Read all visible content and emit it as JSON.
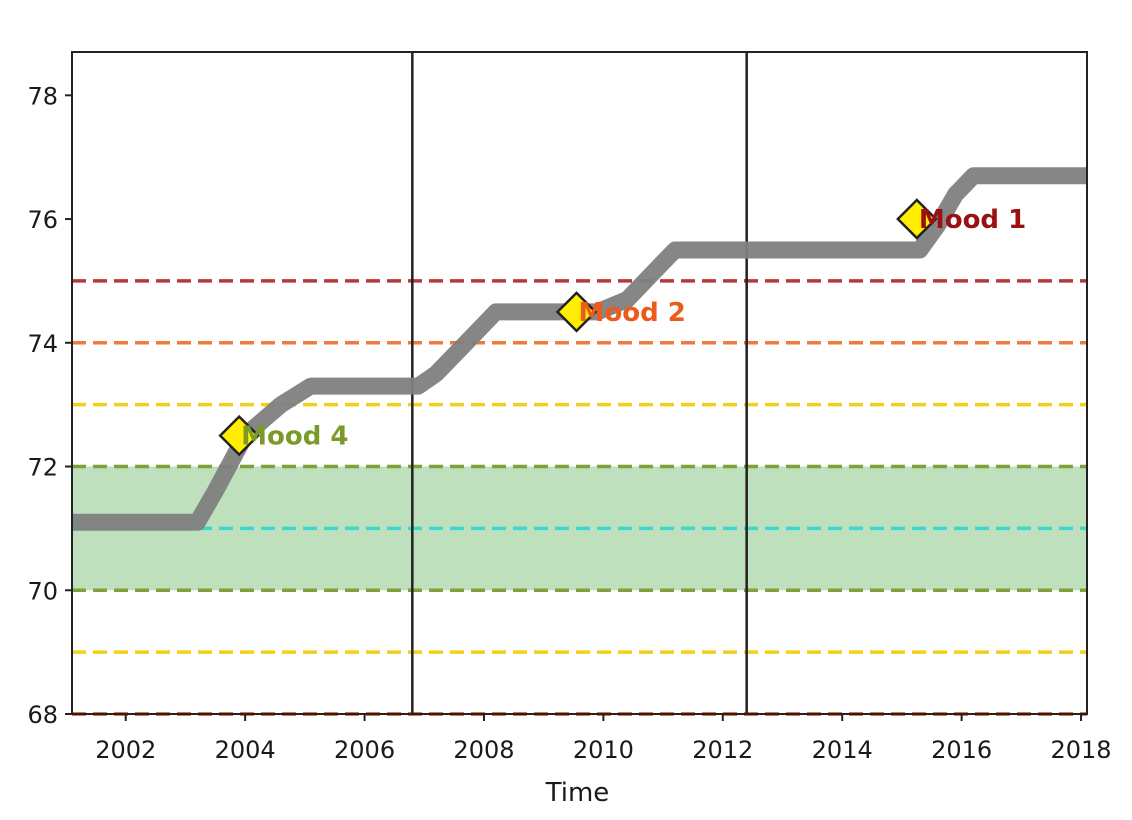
{
  "chart_data": {
    "type": "line",
    "title": "",
    "xlabel": "Time",
    "ylabel": "",
    "xlim": [
      2001.1,
      2018.1
    ],
    "ylim": [
      68,
      78.7
    ],
    "x_ticks": [
      2002,
      2004,
      2006,
      2008,
      2010,
      2012,
      2014,
      2016,
      2018
    ],
    "y_ticks": [
      68,
      70,
      72,
      74,
      76,
      78
    ],
    "grid": false,
    "legend": "none",
    "series": [
      {
        "type": "step-line",
        "color": "#808080",
        "x": [
          2001.1,
          2003.2,
          2003.5,
          2004.0,
          2004.6,
          2005.1,
          2006.9,
          2007.2,
          2007.7,
          2008.2,
          2009.9,
          2010.4,
          2010.9,
          2011.2,
          2015.3,
          2015.6,
          2015.9,
          2016.2,
          2018.1
        ],
        "y": [
          71.1,
          71.1,
          71.6,
          72.5,
          73.0,
          73.3,
          73.3,
          73.5,
          74.0,
          74.5,
          74.5,
          74.7,
          75.2,
          75.5,
          75.5,
          75.9,
          76.4,
          76.7,
          76.7
        ]
      }
    ],
    "markers": [
      {
        "x": 2003.9,
        "y": 72.5,
        "label": "Mood 4",
        "label_color": "#7a9a2a"
      },
      {
        "x": 2009.55,
        "y": 74.5,
        "label": "Mood 2",
        "label_color": "#ee5a1a"
      },
      {
        "x": 2015.25,
        "y": 76.0,
        "label": "Mood 1",
        "label_color": "#9b1010"
      }
    ],
    "marker_color": "#ffee00",
    "horizontal_lines": [
      {
        "y": 75,
        "color": "#b23a3a",
        "style": "dashed"
      },
      {
        "y": 74,
        "color": "#ef7a3a",
        "style": "dashed"
      },
      {
        "y": 73,
        "color": "#f2cf1a",
        "style": "dashed"
      },
      {
        "y": 72,
        "color": "#7fa03a",
        "style": "dashed"
      },
      {
        "y": 71,
        "color": "#3cd8d0",
        "style": "dashed"
      },
      {
        "y": 70,
        "color": "#7fa03a",
        "style": "dashed"
      },
      {
        "y": 69,
        "color": "#f2cf1a",
        "style": "dashed"
      },
      {
        "y": 68,
        "color": "#cc4a1a",
        "style": "dashed"
      }
    ],
    "band": {
      "y0": 70,
      "y1": 72,
      "color": "#bfe0bd"
    },
    "vertical_lines": [
      2006.8,
      2012.4
    ]
  }
}
